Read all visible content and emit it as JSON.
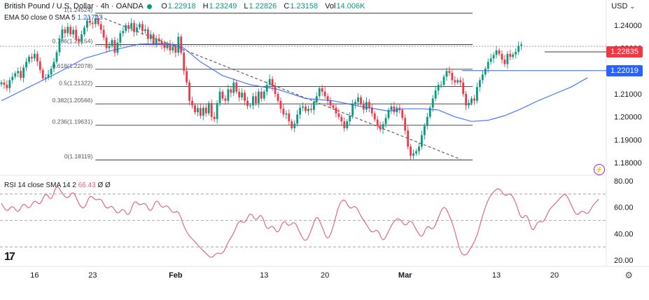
{
  "header": {
    "symbol": "British Pound / U.S. Dollar",
    "interval": "4h",
    "broker": "OANDA",
    "open_label": "O",
    "open": "1.22918",
    "high_label": "H",
    "high": "1.23249",
    "low_label": "L",
    "low": "1.22826",
    "close_label": "C",
    "close": "1.23158",
    "vol_label": "Vol",
    "vol": "14.006K",
    "ema_label": "EMA 50 close 0 SMA 5",
    "ema_value": "1.21713",
    "rsi_label": "RSI 14 close SMA 14 2",
    "rsi_value": "66.43",
    "rsi_extra": "Ø Ø",
    "currency": "USD"
  },
  "price_badges": {
    "current": "1.22835",
    "current_color": "#f23645",
    "level": "1.22019",
    "level_color": "#2962ff"
  },
  "icons": [
    "tradingview-logo-icon",
    "settings-gear-icon",
    "lightning-icon",
    "chevron-down-icon"
  ],
  "chart_data": {
    "type": "candlestick",
    "price_axis": {
      "ylim": [
        1.175,
        1.247
      ],
      "ticks": [
        "1.24000",
        "1.23000",
        "1.22000",
        "1.21000",
        "1.20000",
        "1.19000",
        "1.18000"
      ]
    },
    "rsi_axis": {
      "ylim": [
        17,
        85
      ],
      "ticks": [
        "80.00",
        "60.00",
        "40.00",
        "20.00"
      ],
      "bands": [
        70,
        50,
        30
      ]
    },
    "x_ticks": [
      {
        "label": "16",
        "idx": 12
      },
      {
        "label": "23",
        "idx": 33
      },
      {
        "label": "Feb",
        "idx": 63,
        "bold": true
      },
      {
        "label": "13",
        "idx": 95
      },
      {
        "label": "20",
        "idx": 117
      },
      {
        "label": "Mar",
        "idx": 146,
        "bold": true
      },
      {
        "label": "13",
        "idx": 179
      },
      {
        "label": "20",
        "idx": 200
      }
    ],
    "fib_levels": [
      {
        "label": "1(1.24524)",
        "value": 1.24524
      },
      {
        "label": "0.786(1.23154)",
        "value": 1.23154
      },
      {
        "label": "0.618(1.22078)",
        "value": 1.22078
      },
      {
        "label": "0.5(1.21322)",
        "value": 1.21322
      },
      {
        "label": "0.382(1.20566)",
        "value": 1.20566
      },
      {
        "label": "0.236(1.19631)",
        "value": 1.19631
      },
      {
        "label": "0(1.18119)",
        "value": 1.18119
      }
    ],
    "horizontal_lines": [
      {
        "value": 1.22019,
        "color": "#2962ff"
      },
      {
        "value": 1.22835,
        "color": "#f23645"
      }
    ],
    "trendline": {
      "from": [
        34,
        1.2445
      ],
      "to": [
        166,
        1.1815
      ]
    },
    "closes": [
      1.215,
      1.214,
      1.2125,
      1.216,
      1.2175,
      1.219,
      1.22,
      1.217,
      1.2215,
      1.224,
      1.2262,
      1.2255,
      1.2275,
      1.2242,
      1.2205,
      1.2168,
      1.2172,
      1.2185,
      1.221,
      1.224,
      1.2282,
      1.2342,
      1.2382,
      1.2365,
      1.2393,
      1.236,
      1.238,
      1.234,
      1.233,
      1.236,
      1.239,
      1.242,
      1.241,
      1.2405,
      1.243,
      1.2405,
      1.238,
      1.2346,
      1.23,
      1.231,
      1.2335,
      1.228,
      1.2324,
      1.2365,
      1.2375,
      1.24,
      1.2385,
      1.241,
      1.237,
      1.239,
      1.2405,
      1.2375,
      1.2382,
      1.234,
      1.236,
      1.232,
      1.2342,
      1.233,
      1.2315,
      1.23,
      1.232,
      1.229,
      1.2306,
      1.228,
      1.235,
      1.228,
      1.22,
      1.215,
      1.207,
      1.205,
      1.202,
      1.2038,
      1.2005,
      1.204,
      1.2015,
      1.206,
      1.2,
      1.199,
      1.206,
      1.211,
      1.208,
      1.207,
      1.212,
      1.2105,
      1.215,
      1.211,
      1.2085,
      1.2105,
      1.207,
      1.2048,
      1.205,
      1.209,
      1.206,
      1.211,
      1.208,
      1.211,
      1.214,
      1.2165,
      1.2133,
      1.21,
      1.207,
      1.2035,
      1.201,
      1.2015,
      1.198,
      1.195,
      1.197,
      1.201,
      1.204,
      1.2045,
      1.2025,
      1.2035,
      1.203,
      1.2065,
      1.209,
      1.2125,
      1.211,
      1.209,
      1.207,
      1.205,
      1.204,
      1.2015,
      1.2,
      1.198,
      1.195,
      1.198,
      1.2005,
      1.2055,
      1.2065,
      1.2085,
      1.2058,
      1.2032,
      1.2065,
      1.204,
      1.2015,
      1.1988,
      1.196,
      1.1945,
      1.1968,
      1.1995,
      1.203,
      1.2045,
      1.202,
      1.204,
      1.203,
      1.1995,
      1.194,
      1.187,
      1.183,
      1.184,
      1.185,
      1.187,
      1.192,
      1.196,
      1.2,
      1.204,
      1.208,
      1.2115,
      1.214,
      1.214,
      1.2175,
      1.22,
      1.2192,
      1.216,
      1.215,
      1.216,
      1.215,
      1.21,
      1.205,
      1.206,
      1.208,
      1.207,
      1.213,
      1.216,
      1.2185,
      1.221,
      1.224,
      1.2255,
      1.227,
      1.229,
      1.2275,
      1.225,
      1.223,
      1.2275,
      1.2262,
      1.2272,
      1.2284,
      1.231,
      1.2316
    ],
    "ema50": [
      [
        0,
        1.207
      ],
      [
        10,
        1.213
      ],
      [
        20,
        1.219
      ],
      [
        30,
        1.2255
      ],
      [
        40,
        1.229
      ],
      [
        50,
        1.2318
      ],
      [
        60,
        1.232
      ],
      [
        66,
        1.23
      ],
      [
        72,
        1.224
      ],
      [
        80,
        1.218
      ],
      [
        90,
        1.214
      ],
      [
        100,
        1.212
      ],
      [
        110,
        1.208
      ],
      [
        120,
        1.207
      ],
      [
        130,
        1.2045
      ],
      [
        140,
        1.2025
      ],
      [
        146,
        1.2035
      ],
      [
        152,
        1.2035
      ],
      [
        158,
        1.203
      ],
      [
        164,
        1.2
      ],
      [
        170,
        1.198
      ],
      [
        176,
        1.1985
      ],
      [
        182,
        1.2005
      ],
      [
        188,
        1.2035
      ],
      [
        194,
        1.207
      ],
      [
        200,
        1.21
      ],
      [
        206,
        1.213
      ],
      [
        212,
        1.2171
      ]
    ],
    "rsi": [
      [
        0,
        63
      ],
      [
        2,
        56
      ],
      [
        4,
        62
      ],
      [
        6,
        55
      ],
      [
        8,
        64
      ],
      [
        10,
        58
      ],
      [
        12,
        66
      ],
      [
        14,
        61
      ],
      [
        16,
        72
      ],
      [
        18,
        64
      ],
      [
        20,
        78
      ],
      [
        22,
        70
      ],
      [
        24,
        66
      ],
      [
        26,
        73
      ],
      [
        28,
        62
      ],
      [
        30,
        58
      ],
      [
        32,
        70
      ],
      [
        34,
        65
      ],
      [
        36,
        67
      ],
      [
        38,
        58
      ],
      [
        40,
        62
      ],
      [
        42,
        54
      ],
      [
        44,
        60
      ],
      [
        46,
        52
      ],
      [
        48,
        66
      ],
      [
        50,
        61
      ],
      [
        52,
        64
      ],
      [
        54,
        55
      ],
      [
        56,
        67
      ],
      [
        58,
        59
      ],
      [
        60,
        62
      ],
      [
        62,
        55
      ],
      [
        64,
        58
      ],
      [
        66,
        45
      ],
      [
        68,
        38
      ],
      [
        70,
        34
      ],
      [
        72,
        29
      ],
      [
        74,
        25
      ],
      [
        76,
        21
      ],
      [
        78,
        26
      ],
      [
        80,
        24
      ],
      [
        82,
        34
      ],
      [
        84,
        40
      ],
      [
        86,
        51
      ],
      [
        88,
        47
      ],
      [
        90,
        57
      ],
      [
        92,
        49
      ],
      [
        94,
        56
      ],
      [
        96,
        42
      ],
      [
        98,
        47
      ],
      [
        100,
        39
      ],
      [
        102,
        51
      ],
      [
        104,
        45
      ],
      [
        106,
        50
      ],
      [
        108,
        40
      ],
      [
        110,
        33
      ],
      [
        112,
        42
      ],
      [
        114,
        55
      ],
      [
        116,
        45
      ],
      [
        118,
        34
      ],
      [
        120,
        45
      ],
      [
        122,
        62
      ],
      [
        124,
        67
      ],
      [
        126,
        58
      ],
      [
        128,
        62
      ],
      [
        130,
        53
      ],
      [
        132,
        47
      ],
      [
        134,
        40
      ],
      [
        136,
        44
      ],
      [
        138,
        33
      ],
      [
        140,
        42
      ],
      [
        142,
        50
      ],
      [
        144,
        52
      ],
      [
        146,
        45
      ],
      [
        148,
        51
      ],
      [
        150,
        43
      ],
      [
        152,
        36
      ],
      [
        154,
        47
      ],
      [
        156,
        42
      ],
      [
        158,
        52
      ],
      [
        160,
        62
      ],
      [
        162,
        54
      ],
      [
        164,
        42
      ],
      [
        166,
        25
      ],
      [
        168,
        23
      ],
      [
        170,
        30
      ],
      [
        172,
        38
      ],
      [
        174,
        54
      ],
      [
        176,
        66
      ],
      [
        178,
        72
      ],
      [
        180,
        75
      ],
      [
        182,
        68
      ],
      [
        184,
        71
      ],
      [
        186,
        64
      ],
      [
        188,
        50
      ],
      [
        190,
        56
      ],
      [
        192,
        40
      ],
      [
        194,
        50
      ],
      [
        196,
        48
      ],
      [
        198,
        58
      ],
      [
        200,
        62
      ],
      [
        202,
        67
      ],
      [
        204,
        71
      ],
      [
        206,
        62
      ],
      [
        208,
        53
      ],
      [
        210,
        58
      ],
      [
        212,
        54
      ],
      [
        214,
        62
      ],
      [
        216,
        66
      ]
    ]
  }
}
